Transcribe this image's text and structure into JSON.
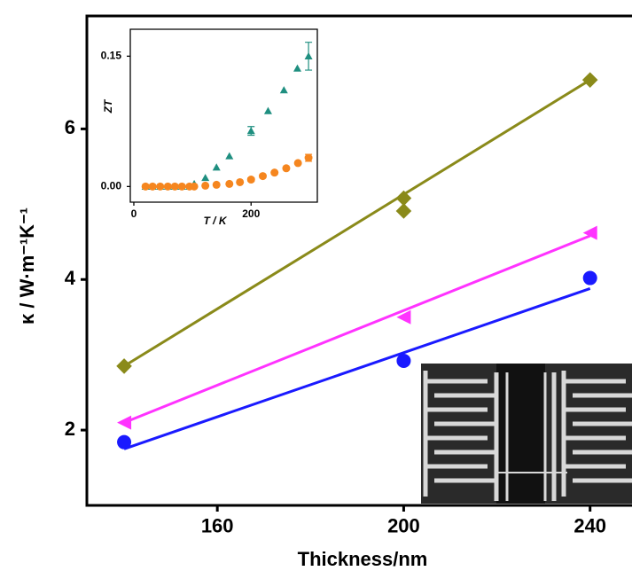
{
  "chart_data": [
    {
      "type": "scatter",
      "x_label": "Thickness/nm",
      "y_label": "κ / W·m⁻¹K⁻¹",
      "xlim": [
        132,
        249
      ],
      "ylim": [
        1,
        7.5
      ],
      "xticks": [
        160,
        200,
        240
      ],
      "yticks": [
        2,
        4,
        6
      ],
      "series": [
        {
          "color": "#8a8a1a",
          "marker": "diamond",
          "x": [
            140,
            200,
            200,
            240
          ],
          "values": [
            2.85,
            5.08,
            4.91,
            6.65
          ],
          "fit": [
            2.85,
            6.65
          ]
        },
        {
          "color": "#ff33ff",
          "marker": "triangle-left",
          "x": [
            140,
            200,
            240
          ],
          "values": [
            2.1,
            3.5,
            4.62
          ],
          "fit": [
            2.1,
            4.58
          ]
        },
        {
          "color": "#1a1aff",
          "marker": "circle",
          "x": [
            140,
            200,
            240
          ],
          "values": [
            1.84,
            2.92,
            4.02
          ],
          "fit": [
            1.75,
            3.88
          ]
        }
      ]
    },
    {
      "type": "scatter",
      "x_label": "T / K",
      "y_label": "ZT",
      "xlim": [
        -6,
        313
      ],
      "ylim": [
        -0.018,
        0.181
      ],
      "xticks": [
        0,
        200
      ],
      "yticks": [
        {
          "value": 0,
          "label": "0.00"
        },
        {
          "value": 0.15,
          "label": "0.15"
        }
      ],
      "series": [
        {
          "color": "#1f8f80",
          "marker": "triangle-up",
          "x": [
            20,
            32,
            45,
            58,
            70,
            82,
            95,
            103,
            122,
            141,
            163,
            200,
            229,
            256,
            279,
            298
          ],
          "values": [
            0,
            0,
            0,
            0,
            0,
            0,
            0,
            0.003,
            0.01,
            0.022,
            0.035,
            0.064,
            0.087,
            0.111,
            0.136,
            0.15
          ],
          "errors": [
            null,
            null,
            null,
            null,
            null,
            null,
            null,
            null,
            null,
            null,
            null,
            0.005,
            null,
            null,
            null,
            0.016
          ]
        },
        {
          "color": "#f5861f",
          "marker": "circle",
          "x": [
            20,
            32,
            45,
            58,
            70,
            82,
            95,
            103,
            122,
            141,
            163,
            181,
            200,
            220,
            240,
            260,
            280,
            298
          ],
          "values": [
            0,
            0,
            0,
            0,
            0,
            0,
            0,
            0,
            0.001,
            0.002,
            0.003,
            0.005,
            0.008,
            0.012,
            0.016,
            0.021,
            0.027,
            0.033
          ],
          "errors": [
            null,
            null,
            null,
            null,
            null,
            null,
            null,
            null,
            null,
            null,
            null,
            null,
            0.002,
            null,
            null,
            null,
            null,
            0.004
          ]
        }
      ]
    }
  ]
}
